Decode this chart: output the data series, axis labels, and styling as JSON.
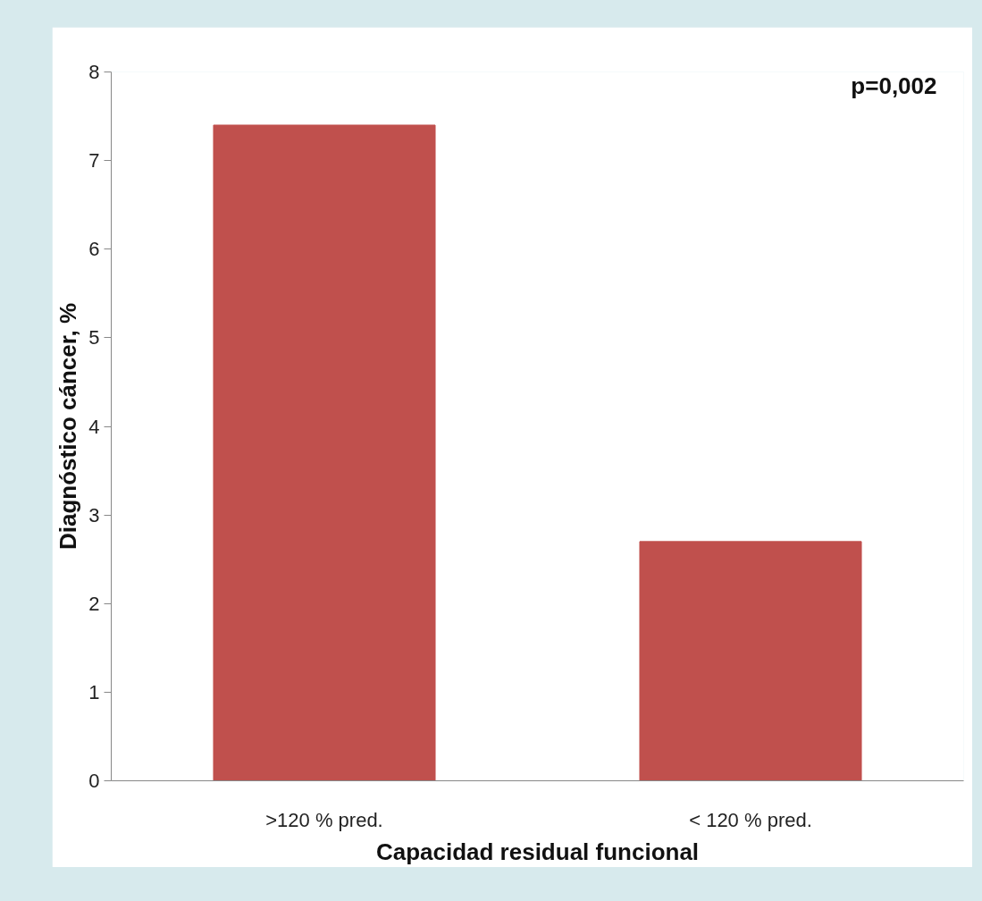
{
  "chart_data": {
    "type": "bar",
    "xlabel": "Capacidad residual funcional",
    "ylabel": "Diagnóstico cáncer, %",
    "categories": [
      ">120 % pred.",
      "< 120 % pred."
    ],
    "values": [
      7.4,
      2.7
    ],
    "color": "#c0504d",
    "ylim": [
      0,
      8
    ],
    "yticks": [
      0,
      1,
      2,
      3,
      4,
      5,
      6,
      7,
      8
    ],
    "grid": false,
    "annotations": [
      "p=0,002"
    ]
  }
}
